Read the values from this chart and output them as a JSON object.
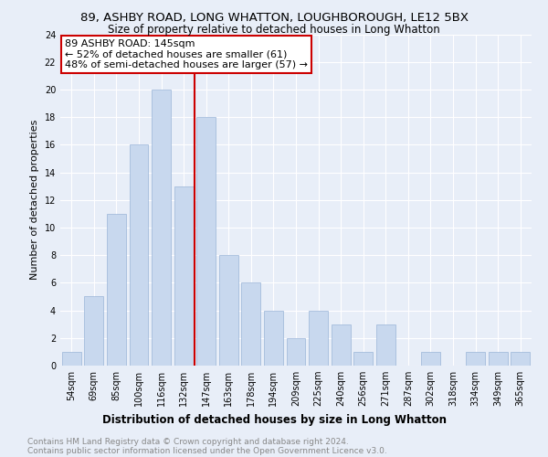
{
  "title": "89, ASHBY ROAD, LONG WHATTON, LOUGHBOROUGH, LE12 5BX",
  "subtitle": "Size of property relative to detached houses in Long Whatton",
  "xlabel": "Distribution of detached houses by size in Long Whatton",
  "ylabel": "Number of detached properties",
  "categories": [
    "54sqm",
    "69sqm",
    "85sqm",
    "100sqm",
    "116sqm",
    "132sqm",
    "147sqm",
    "163sqm",
    "178sqm",
    "194sqm",
    "209sqm",
    "225sqm",
    "240sqm",
    "256sqm",
    "271sqm",
    "287sqm",
    "302sqm",
    "318sqm",
    "334sqm",
    "349sqm",
    "365sqm"
  ],
  "values": [
    1,
    5,
    11,
    16,
    20,
    13,
    18,
    8,
    6,
    4,
    2,
    4,
    3,
    1,
    3,
    0,
    1,
    0,
    1,
    1,
    1
  ],
  "bar_color": "#c8d8ee",
  "bar_edgecolor": "#9ab5d8",
  "vline_x_index": 5.5,
  "vline_color": "#cc0000",
  "annotation_text": "89 ASHBY ROAD: 145sqm\n← 52% of detached houses are smaller (61)\n48% of semi-detached houses are larger (57) →",
  "annotation_box_color": "#ffffff",
  "annotation_box_edgecolor": "#cc0000",
  "ylim": [
    0,
    24
  ],
  "yticks": [
    0,
    2,
    4,
    6,
    8,
    10,
    12,
    14,
    16,
    18,
    20,
    22,
    24
  ],
  "footer_line1": "Contains HM Land Registry data © Crown copyright and database right 2024.",
  "footer_line2": "Contains public sector information licensed under the Open Government Licence v3.0.",
  "bg_color": "#e8eef8",
  "plot_bg_color": "#e8eef8",
  "grid_color": "#ffffff",
  "title_fontsize": 9.5,
  "subtitle_fontsize": 8.5,
  "ylabel_fontsize": 8,
  "xlabel_fontsize": 8.5,
  "tick_fontsize": 7,
  "annotation_fontsize": 8,
  "footer_fontsize": 6.5
}
